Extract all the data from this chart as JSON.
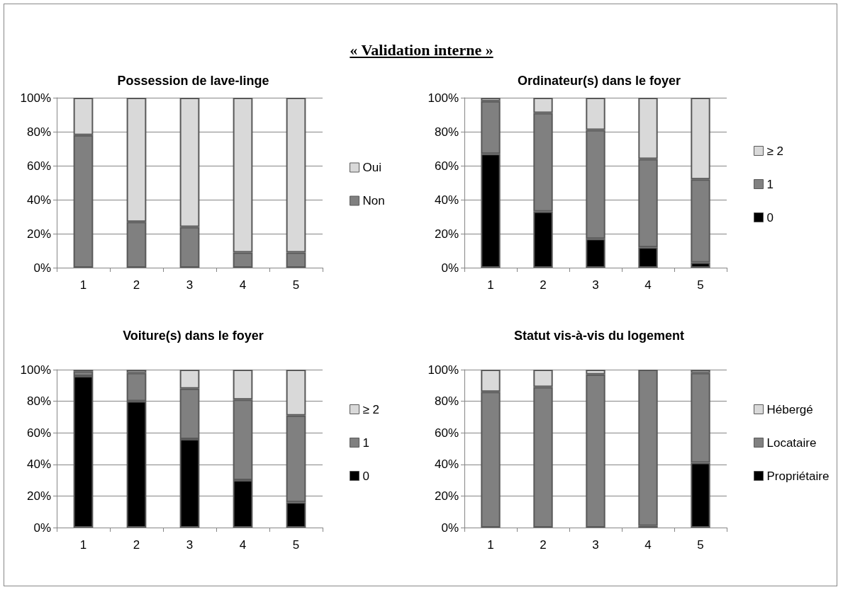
{
  "chart_data": [
    {
      "type": "other",
      "title": "« Validation interne »"
    },
    {
      "type": "bar",
      "title": "Possession de lave-linge",
      "stacked": true,
      "categories": [
        "1",
        "2",
        "3",
        "4",
        "5"
      ],
      "ylim": [
        0,
        100
      ],
      "yticks": [
        {
          "value": 0,
          "label": "0%"
        },
        {
          "value": 20,
          "label": "20%"
        },
        {
          "value": 40,
          "label": "40%"
        },
        {
          "value": 60,
          "label": "60%"
        },
        {
          "value": 80,
          "label": "80%"
        },
        {
          "value": 100,
          "label": "100%"
        }
      ],
      "grid": "y",
      "legend": "right",
      "series": [
        {
          "name": "Non",
          "color": "#808080",
          "values": [
            78,
            27,
            24,
            9,
            9
          ]
        },
        {
          "name": "Oui",
          "color": "#d9d9d9",
          "values": [
            22,
            73,
            76,
            91,
            91
          ]
        }
      ]
    },
    {
      "type": "bar",
      "title": "Ordinateur(s) dans le foyer",
      "stacked": true,
      "categories": [
        "1",
        "2",
        "3",
        "4",
        "5"
      ],
      "ylim": [
        0,
        100
      ],
      "yticks": [
        {
          "value": 0,
          "label": "0%"
        },
        {
          "value": 20,
          "label": "20%"
        },
        {
          "value": 40,
          "label": "40%"
        },
        {
          "value": 60,
          "label": "60%"
        },
        {
          "value": 80,
          "label": "80%"
        },
        {
          "value": 100,
          "label": "100%"
        }
      ],
      "grid": "y",
      "legend": "right",
      "series": [
        {
          "name": "0",
          "color": "#000000",
          "values": [
            67,
            33,
            17,
            12,
            3
          ]
        },
        {
          "name": "1",
          "color": "#808080",
          "values": [
            31,
            58,
            64,
            52,
            49
          ]
        },
        {
          "name": "≥ 2",
          "color": "#d9d9d9",
          "values": [
            2,
            9,
            19,
            36,
            48
          ]
        }
      ]
    },
    {
      "type": "bar",
      "title": "Voiture(s) dans le foyer",
      "stacked": true,
      "categories": [
        "1",
        "2",
        "3",
        "4",
        "5"
      ],
      "ylim": [
        0,
        100
      ],
      "yticks": [
        {
          "value": 0,
          "label": "0%"
        },
        {
          "value": 20,
          "label": "20%"
        },
        {
          "value": 40,
          "label": "40%"
        },
        {
          "value": 60,
          "label": "60%"
        },
        {
          "value": 80,
          "label": "80%"
        },
        {
          "value": 100,
          "label": "100%"
        }
      ],
      "grid": "y",
      "legend": "right",
      "series": [
        {
          "name": "0",
          "color": "#000000",
          "values": [
            96,
            80,
            56,
            30,
            16
          ]
        },
        {
          "name": "1",
          "color": "#808080",
          "values": [
            3,
            18,
            32,
            51,
            55
          ]
        },
        {
          "name": "≥ 2",
          "color": "#d9d9d9",
          "values": [
            1,
            2,
            12,
            19,
            29
          ]
        }
      ]
    },
    {
      "type": "bar",
      "title": "Statut vis-à-vis du logement",
      "stacked": true,
      "categories": [
        "1",
        "2",
        "3",
        "4",
        "5"
      ],
      "ylim": [
        0,
        100
      ],
      "yticks": [
        {
          "value": 0,
          "label": "0%"
        },
        {
          "value": 20,
          "label": "20%"
        },
        {
          "value": 40,
          "label": "40%"
        },
        {
          "value": 60,
          "label": "60%"
        },
        {
          "value": 80,
          "label": "80%"
        },
        {
          "value": 100,
          "label": "100%"
        }
      ],
      "grid": "y",
      "legend": "right",
      "series": [
        {
          "name": "Propriétaire",
          "color": "#000000",
          "values": [
            0,
            0,
            0,
            1,
            41
          ]
        },
        {
          "name": "Locataire",
          "color": "#808080",
          "values": [
            86,
            89,
            97,
            99,
            57
          ]
        },
        {
          "name": "Hébergé",
          "color": "#d9d9d9",
          "values": [
            14,
            11,
            3,
            0,
            2
          ]
        }
      ]
    }
  ]
}
